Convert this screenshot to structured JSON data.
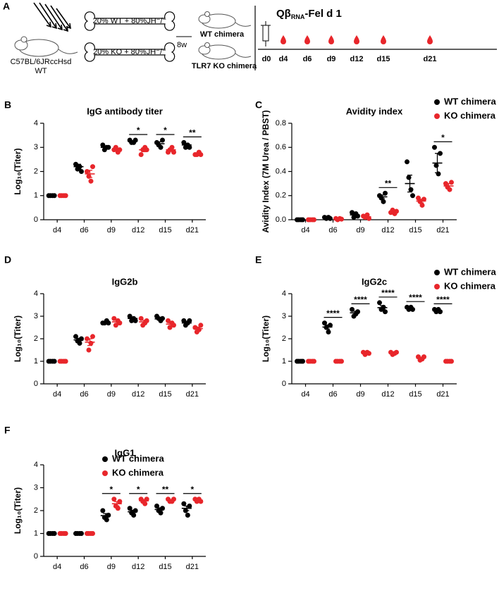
{
  "diagram": {
    "panel": "A",
    "strain": "C57BL/6JRccHsd",
    "strain_type": "WT",
    "mix_wt": "20% WT + 80%JH⁻/⁻",
    "mix_ko": "20% KO + 80%JH⁻/⁻",
    "duration": "8w",
    "chimera_wt": "WT chimera",
    "chimera_ko": "TLR7 KO chimera",
    "vaccine": {
      "name": "Qβ",
      "subscript": "RNA",
      "suffix": "-Fel d 1"
    },
    "timeline": [
      "d0",
      "d4",
      "d6",
      "d9",
      "d12",
      "d15",
      "d21"
    ]
  },
  "chart_data": [
    {
      "type": "dot",
      "panel": "B",
      "title": "IgG antibody titer",
      "ylabel": "Log₁₀(Titer)",
      "categories": [
        "d4",
        "d6",
        "d9",
        "d12",
        "d15",
        "d21"
      ],
      "ylim": [
        0,
        4
      ],
      "yticks": [
        0,
        1,
        2,
        3,
        4
      ],
      "series": [
        {
          "color": "#000000",
          "values": [
            1,
            2.2,
            3.0,
            3.25,
            3.15,
            3.1
          ],
          "errors": [
            0,
            0.1,
            0.05,
            0.03,
            0.08,
            0.06
          ],
          "points": [
            [
              1,
              1,
              1,
              1
            ],
            [
              2.3,
              2.1,
              2.2,
              2.0
            ],
            [
              3.1,
              2.9,
              3.0,
              3.0
            ],
            [
              3.3,
              3.2,
              3.2,
              3.3
            ],
            [
              3.2,
              3.1,
              3.0,
              3.3
            ],
            [
              3.2,
              3.0,
              3.1,
              3.0
            ]
          ]
        },
        {
          "color": "#e8262b",
          "values": [
            1,
            1.9,
            2.9,
            2.9,
            2.9,
            2.7
          ],
          "errors": [
            0,
            0.15,
            0.05,
            0.08,
            0.06,
            0.04
          ],
          "points": [
            [
              1,
              1,
              1,
              1
            ],
            [
              2.0,
              1.8,
              1.6,
              2.2
            ],
            [
              2.9,
              3.0,
              2.8,
              2.9
            ],
            [
              2.7,
              2.9,
              3.0,
              2.9
            ],
            [
              2.8,
              2.9,
              3.0,
              2.8
            ],
            [
              2.7,
              2.7,
              2.8,
              2.7
            ]
          ]
        }
      ],
      "annotations": [
        {
          "category": "d12",
          "label": "*"
        },
        {
          "category": "d15",
          "label": "*"
        },
        {
          "category": "d21",
          "label": "**"
        }
      ]
    },
    {
      "type": "dot",
      "panel": "C",
      "title": "Avidity index",
      "ylabel": "Avidity Index (7M Urea / PBST)",
      "categories": [
        "d4",
        "d6",
        "d9",
        "d12",
        "d15",
        "d21"
      ],
      "ylim": [
        0,
        0.8
      ],
      "yticks": [
        {
          "value": 0,
          "label": "0.0"
        },
        0.2,
        0.4,
        0.6,
        0.8
      ],
      "legend": "top-right",
      "series": [
        {
          "name": "WT chimera",
          "color": "#000000",
          "values": [
            0,
            0.015,
            0.04,
            0.19,
            0.3,
            0.47
          ],
          "errors": [
            0,
            0.003,
            0.01,
            0.015,
            0.07,
            0.08
          ],
          "points": [
            [
              0,
              0,
              0,
              0
            ],
            [
              0.02,
              0.01,
              0.02,
              0.01
            ],
            [
              0.06,
              0.02,
              0.05,
              0.03
            ],
            [
              0.2,
              0.18,
              0.15,
              0.22
            ],
            [
              0.48,
              0.35,
              0.25,
              0.2
            ],
            [
              0.6,
              0.45,
              0.38,
              0.55
            ]
          ]
        },
        {
          "name": "KO chimera",
          "color": "#e8262b",
          "values": [
            0,
            0.006,
            0.025,
            0.065,
            0.155,
            0.28
          ],
          "errors": [
            0,
            0.002,
            0.008,
            0.01,
            0.015,
            0.02
          ],
          "points": [
            [
              0,
              0,
              0,
              0
            ],
            [
              0.01,
              0,
              0.01,
              0.005
            ],
            [
              0.03,
              0.02,
              0.04,
              0.01
            ],
            [
              0.06,
              0.08,
              0.05,
              0.07
            ],
            [
              0.18,
              0.15,
              0.12,
              0.17
            ],
            [
              0.3,
              0.27,
              0.25,
              0.31
            ]
          ]
        }
      ],
      "annotations": [
        {
          "category": "d12",
          "label": "**"
        },
        {
          "category": "d21",
          "label": "*"
        }
      ]
    },
    {
      "type": "dot",
      "panel": "D",
      "title": "IgG2b",
      "ylabel": "Log₁₀(Titer)",
      "categories": [
        "d4",
        "d6",
        "d9",
        "d12",
        "d15",
        "d21"
      ],
      "ylim": [
        0,
        4
      ],
      "yticks": [
        0,
        1,
        2,
        3,
        4
      ],
      "series": [
        {
          "color": "#000000",
          "values": [
            1,
            1.95,
            2.72,
            2.9,
            2.88,
            2.7
          ],
          "errors": [
            0,
            0.07,
            0.03,
            0.05,
            0.04,
            0.05
          ],
          "points": [
            [
              1,
              1,
              1,
              1
            ],
            [
              2.1,
              1.9,
              1.8,
              2.0
            ],
            [
              2.7,
              2.7,
              2.8,
              2.7
            ],
            [
              3.0,
              2.8,
              2.9,
              2.8
            ],
            [
              3.0,
              2.9,
              2.8,
              2.9
            ],
            [
              2.8,
              2.6,
              2.7,
              2.8
            ]
          ]
        },
        {
          "color": "#e8262b",
          "values": [
            1,
            1.85,
            2.75,
            2.75,
            2.65,
            2.45
          ],
          "errors": [
            0,
            0.15,
            0.07,
            0.07,
            0.06,
            0.07
          ],
          "points": [
            [
              1,
              1,
              1,
              1
            ],
            [
              2.0,
              1.5,
              1.8,
              2.1
            ],
            [
              2.9,
              2.6,
              2.8,
              2.7
            ],
            [
              2.9,
              2.6,
              2.7,
              2.8
            ],
            [
              2.8,
              2.5,
              2.7,
              2.6
            ],
            [
              2.5,
              2.3,
              2.4,
              2.6
            ]
          ]
        }
      ],
      "annotations": []
    },
    {
      "type": "dot",
      "panel": "E",
      "title": "IgG2c",
      "ylabel": "Log₁₀(Titer)",
      "categories": [
        "d4",
        "d6",
        "d9",
        "d12",
        "d15",
        "d21"
      ],
      "ylim": [
        0,
        4
      ],
      "yticks": [
        0,
        1,
        2,
        3,
        4
      ],
      "legend": "top-right",
      "series": [
        {
          "name": "WT chimera",
          "color": "#000000",
          "values": [
            1,
            2.52,
            3.15,
            3.38,
            3.35,
            3.25
          ],
          "errors": [
            0,
            0.09,
            0.07,
            0.09,
            0.03,
            0.03
          ],
          "points": [
            [
              1,
              1,
              1,
              1
            ],
            [
              2.7,
              2.5,
              2.3,
              2.6
            ],
            [
              3.3,
              3.0,
              3.1,
              3.2
            ],
            [
              3.6,
              3.3,
              3.4,
              3.2
            ],
            [
              3.4,
              3.3,
              3.4,
              3.3
            ],
            [
              3.3,
              3.2,
              3.3,
              3.2
            ]
          ]
        },
        {
          "name": "KO chimera",
          "color": "#e8262b",
          "values": [
            1,
            1,
            1.36,
            1.36,
            1.14,
            1
          ],
          "errors": [
            0,
            0,
            0.02,
            0.03,
            0.04,
            0
          ],
          "points": [
            [
              1,
              1,
              1,
              1
            ],
            [
              1,
              1,
              1,
              1
            ],
            [
              1.4,
              1.3,
              1.4,
              1.35
            ],
            [
              1.4,
              1.3,
              1.35,
              1.4
            ],
            [
              1.2,
              1.05,
              1.1,
              1.2
            ],
            [
              1,
              1,
              1,
              1
            ]
          ]
        }
      ],
      "annotations": [
        {
          "category": "d6",
          "label": "****"
        },
        {
          "category": "d9",
          "label": "****"
        },
        {
          "category": "d12",
          "label": "****"
        },
        {
          "category": "d15",
          "label": "****"
        },
        {
          "category": "d21",
          "label": "****"
        }
      ]
    },
    {
      "type": "dot",
      "panel": "F",
      "title": "IgG1",
      "ylabel": "Log₁₀(Titer)",
      "categories": [
        "d4",
        "d6",
        "d9",
        "d12",
        "d15",
        "d21"
      ],
      "ylim": [
        0,
        4
      ],
      "yticks": [
        0,
        1,
        2,
        3,
        4
      ],
      "legend": "top",
      "series": [
        {
          "name": "WT chimera",
          "color": "#000000",
          "values": [
            1,
            1,
            1.78,
            1.95,
            2.05,
            2.1
          ],
          "errors": [
            0,
            0,
            0.09,
            0.07,
            0.07,
            0.1
          ],
          "points": [
            [
              1,
              1,
              1,
              1
            ],
            [
              1,
              1,
              1,
              1
            ],
            [
              2.0,
              1.7,
              1.6,
              1.8
            ],
            [
              2.1,
              1.9,
              1.8,
              2.0
            ],
            [
              2.2,
              2.0,
              1.9,
              2.1
            ],
            [
              2.3,
              2.0,
              1.8,
              2.2
            ]
          ]
        },
        {
          "name": "KO chimera",
          "color": "#e8262b",
          "values": [
            1,
            1,
            2.3,
            2.43,
            2.45,
            2.45
          ],
          "errors": [
            0,
            0,
            0.09,
            0.05,
            0.03,
            0.03
          ],
          "points": [
            [
              1,
              1,
              1,
              1
            ],
            [
              1,
              1,
              1,
              1
            ],
            [
              2.5,
              2.2,
              2.1,
              2.4
            ],
            [
              2.5,
              2.4,
              2.3,
              2.5
            ],
            [
              2.5,
              2.4,
              2.4,
              2.5
            ],
            [
              2.5,
              2.4,
              2.5,
              2.4
            ]
          ]
        }
      ],
      "annotations": [
        {
          "category": "d9",
          "label": "*"
        },
        {
          "category": "d12",
          "label": "*"
        },
        {
          "category": "d15",
          "label": "**"
        },
        {
          "category": "d21",
          "label": "*"
        }
      ]
    }
  ]
}
